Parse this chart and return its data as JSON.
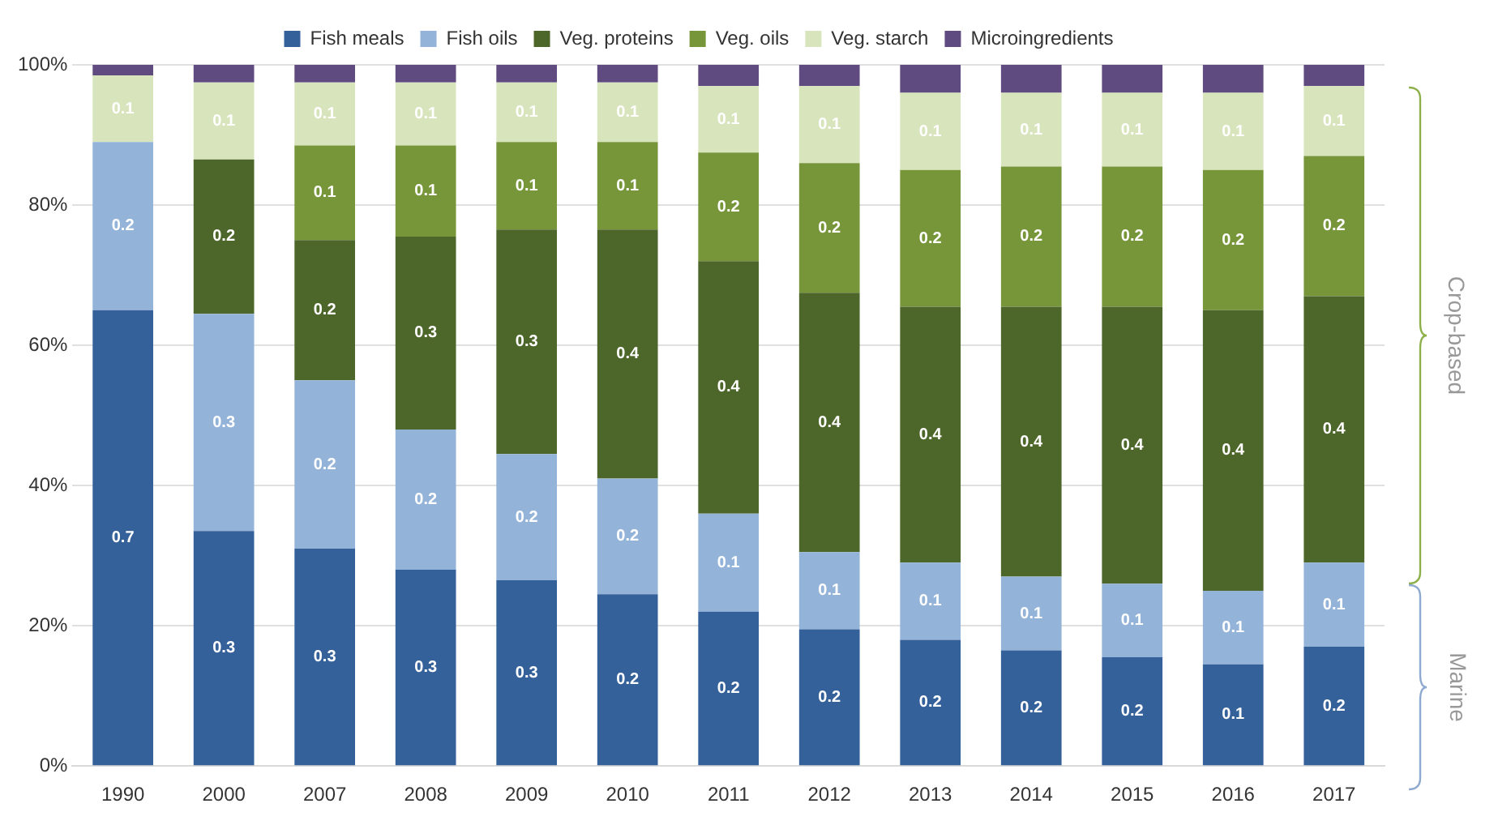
{
  "chart_data": {
    "type": "bar",
    "stacked": true,
    "categories": [
      "1990",
      "2000",
      "2007",
      "2008",
      "2009",
      "2010",
      "2011",
      "2012",
      "2013",
      "2014",
      "2015",
      "2016",
      "2017"
    ],
    "series": [
      {
        "name": "Fish meals",
        "color": "#35619a",
        "values": [
          0.65,
          0.335,
          0.31,
          0.28,
          0.265,
          0.245,
          0.22,
          0.195,
          0.18,
          0.165,
          0.155,
          0.145,
          0.17
        ],
        "value_labels": [
          "0.7",
          "0.3",
          "0.3",
          "0.3",
          "0.3",
          "0.2",
          "0.2",
          "0.2",
          "0.2",
          "0.2",
          "0.2",
          "0.1",
          "0.2"
        ]
      },
      {
        "name": "Fish oils",
        "color": "#93b3d9",
        "values": [
          0.24,
          0.31,
          0.24,
          0.2,
          0.18,
          0.165,
          0.14,
          0.11,
          0.11,
          0.105,
          0.105,
          0.105,
          0.12
        ],
        "value_labels": [
          "0.2",
          "0.3",
          "0.2",
          "0.2",
          "0.2",
          "0.2",
          "0.1",
          "0.1",
          "0.1",
          "0.1",
          "0.1",
          "0.1",
          "0.1"
        ]
      },
      {
        "name": "Veg. proteins",
        "color": "#4d6629",
        "values": [
          0,
          0.22,
          0.2,
          0.275,
          0.32,
          0.355,
          0.36,
          0.37,
          0.365,
          0.385,
          0.395,
          0.4,
          0.38
        ],
        "value_labels": [
          null,
          "0.2",
          "0.2",
          "0.3",
          "0.3",
          "0.4",
          "0.4",
          "0.4",
          "0.4",
          "0.4",
          "0.4",
          "0.4",
          "0.4"
        ]
      },
      {
        "name": "Veg. oils",
        "color": "#77963a",
        "values": [
          0,
          0,
          0.135,
          0.13,
          0.125,
          0.125,
          0.155,
          0.185,
          0.195,
          0.2,
          0.2,
          0.2,
          0.2
        ],
        "value_labels": [
          null,
          null,
          "0.1",
          "0.1",
          "0.1",
          "0.1",
          "0.2",
          "0.2",
          "0.2",
          "0.2",
          "0.2",
          "0.2",
          "0.2"
        ]
      },
      {
        "name": "Veg. starch",
        "color": "#d8e4bc",
        "values": [
          0.095,
          0.11,
          0.09,
          0.09,
          0.085,
          0.085,
          0.095,
          0.11,
          0.11,
          0.105,
          0.105,
          0.11,
          0.1
        ],
        "value_labels": [
          "0.1",
          "0.1",
          "0.1",
          "0.1",
          "0.1",
          "0.1",
          "0.1",
          "0.1",
          "0.1",
          "0.1",
          "0.1",
          "0.1",
          "0.1"
        ]
      },
      {
        "name": "Microingredients",
        "color": "#5f4b80",
        "values": [
          0.015,
          0.025,
          0.025,
          0.025,
          0.025,
          0.025,
          0.03,
          0.03,
          0.04,
          0.04,
          0.04,
          0.04,
          0.03
        ]
      }
    ],
    "ylim": [
      0,
      1
    ],
    "yticks": [
      {
        "value": 0,
        "label": "0%"
      },
      {
        "value": 0.2,
        "label": "20%"
      },
      {
        "value": 0.4,
        "label": "40%"
      },
      {
        "value": 0.6,
        "label": "60%"
      },
      {
        "value": 0.8,
        "label": "80%"
      },
      {
        "value": 1,
        "label": "100%"
      }
    ],
    "grid": "y",
    "legend": "top",
    "annotations": [
      "Crop-based",
      "Marine"
    ]
  }
}
